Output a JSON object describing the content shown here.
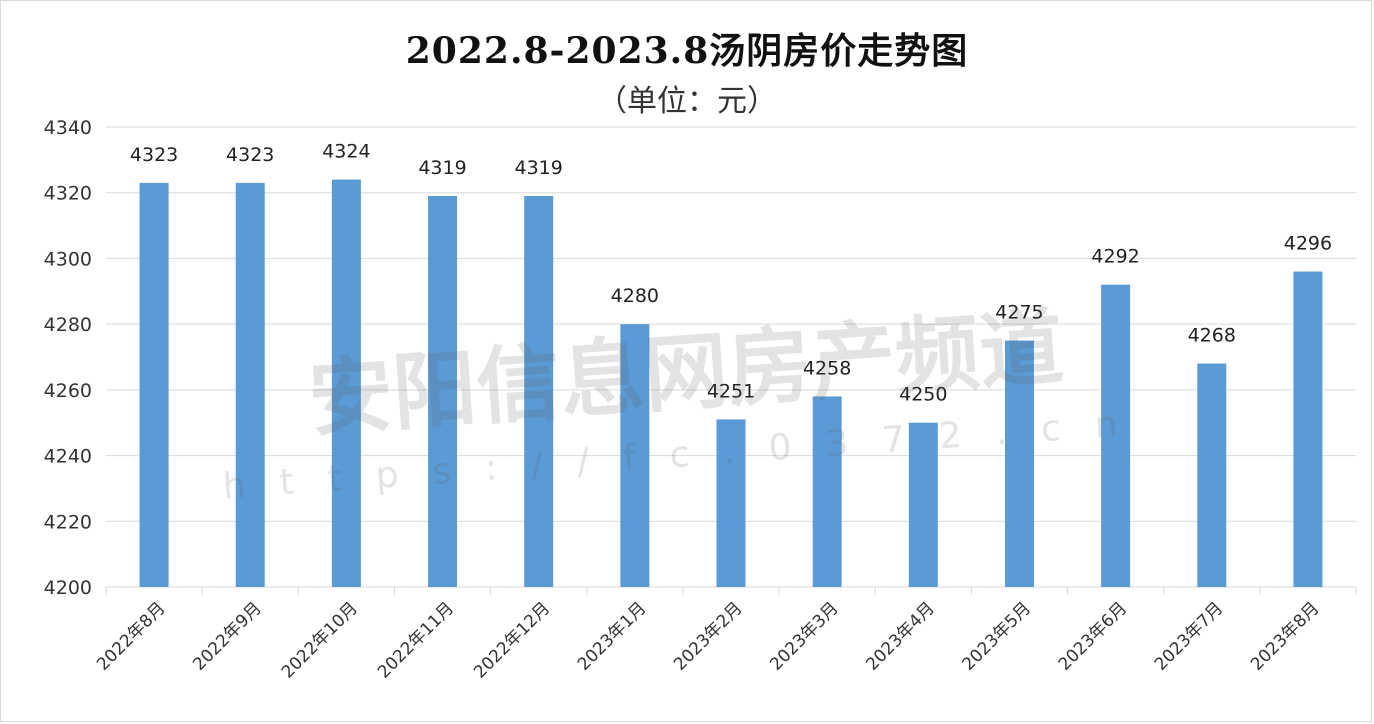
{
  "chart_data": {
    "type": "bar",
    "title": "2022.8-2023.8汤阴房价走势图",
    "subtitle": "（单位：元）",
    "categories": [
      "2022年8月",
      "2022年9月",
      "2022年10月",
      "2022年11月",
      "2022年12月",
      "2023年1月",
      "2023年2月",
      "2023年3月",
      "2023年4月",
      "2023年5月",
      "2023年6月",
      "2023年7月",
      "2023年8月"
    ],
    "values": [
      4323,
      4323,
      4324,
      4319,
      4319,
      4280,
      4251,
      4258,
      4250,
      4275,
      4292,
      4268,
      4296
    ],
    "yticks": [
      4200,
      4220,
      4240,
      4260,
      4280,
      4300,
      4320,
      4340
    ],
    "ylim": [
      4200,
      4340
    ],
    "grid": true,
    "bar_color": "#5b9bd5",
    "grid_color": "#d9d9d9"
  },
  "watermark": {
    "text": "安阳信息网房产频道",
    "url": "https://fc.0372.cn"
  }
}
